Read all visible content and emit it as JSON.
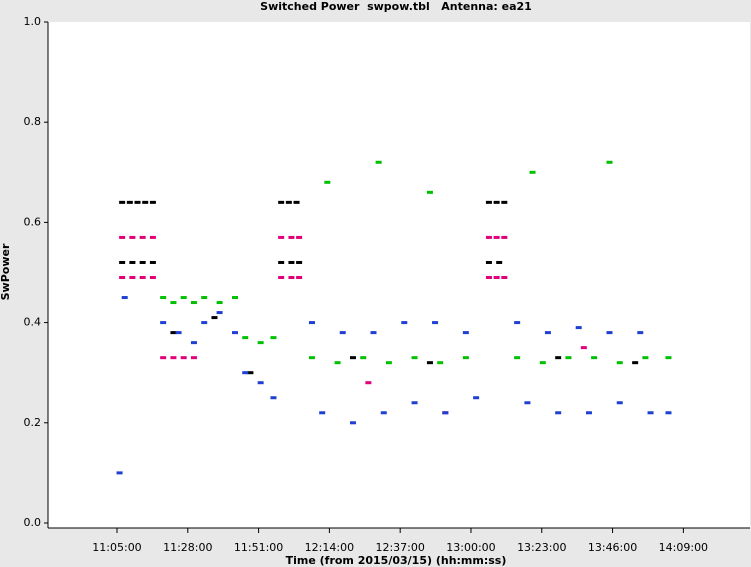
{
  "chart_data": {
    "type": "scatter",
    "title": "Switched Power  swpow.tbl   Antenna: ea21",
    "xlabel": "Time (from 2015/03/15) (hh:mm:ss)",
    "ylabel": "SwPower",
    "xlim": [
      38555,
      52239
    ],
    "ylim": [
      -0.01,
      1.0
    ],
    "xticks": [
      {
        "value": 39900,
        "label": "11:05:00"
      },
      {
        "value": 41280,
        "label": "11:28:00"
      },
      {
        "value": 42660,
        "label": "11:51:00"
      },
      {
        "value": 44040,
        "label": "12:14:00"
      },
      {
        "value": 45420,
        "label": "12:37:00"
      },
      {
        "value": 46800,
        "label": "13:00:00"
      },
      {
        "value": 48180,
        "label": "13:23:00"
      },
      {
        "value": 49560,
        "label": "13:46:00"
      },
      {
        "value": 50940,
        "label": "14:09:00"
      }
    ],
    "yticks": [
      {
        "value": 0,
        "label": "0.0"
      },
      0.2,
      0.4,
      0.6,
      0.8,
      {
        "value": 1,
        "label": "1.0"
      }
    ],
    "series": [
      {
        "color": "#000000",
        "x": [
          40000,
          40150,
          40300,
          40450,
          40600,
          40000,
          40200,
          40400,
          40600,
          43100,
          43250,
          43400,
          43100,
          43300,
          43450,
          47150,
          47300,
          47450,
          47150,
          47350,
          41000,
          41800,
          42500,
          44500,
          46000,
          48500,
          50000
        ],
        "values": [
          0.64,
          0.64,
          0.64,
          0.64,
          0.64,
          0.52,
          0.52,
          0.52,
          0.52,
          0.64,
          0.64,
          0.64,
          0.52,
          0.52,
          0.52,
          0.64,
          0.64,
          0.64,
          0.52,
          0.52,
          0.38,
          0.41,
          0.3,
          0.33,
          0.32,
          0.33,
          0.32
        ]
      },
      {
        "color": "#e0007a",
        "x": [
          40000,
          40200,
          40400,
          40600,
          40000,
          40200,
          40400,
          40600,
          43100,
          43300,
          43450,
          43100,
          43300,
          43450,
          47150,
          47300,
          47450,
          47150,
          47300,
          47450,
          40800,
          41000,
          41200,
          41400,
          44800,
          46300,
          49000
        ],
        "values": [
          0.57,
          0.57,
          0.57,
          0.57,
          0.49,
          0.49,
          0.49,
          0.49,
          0.57,
          0.57,
          0.57,
          0.49,
          0.49,
          0.49,
          0.57,
          0.57,
          0.57,
          0.49,
          0.49,
          0.49,
          0.33,
          0.33,
          0.33,
          0.33,
          0.28,
          0.22,
          0.35
        ]
      },
      {
        "color": "#00c000",
        "x": [
          40800,
          41000,
          41200,
          41400,
          41600,
          41900,
          42200,
          42400,
          42700,
          42950,
          43700,
          44200,
          44700,
          45200,
          45700,
          46200,
          46700,
          47700,
          48200,
          48700,
          49200,
          49700,
          50200,
          50650,
          44000,
          45000,
          46000,
          48000,
          49500
        ],
        "values": [
          0.45,
          0.44,
          0.45,
          0.44,
          0.45,
          0.44,
          0.45,
          0.37,
          0.36,
          0.37,
          0.33,
          0.32,
          0.33,
          0.32,
          0.33,
          0.32,
          0.33,
          0.33,
          0.32,
          0.33,
          0.33,
          0.32,
          0.33,
          0.33,
          0.68,
          0.72,
          0.66,
          0.7,
          0.72
        ]
      },
      {
        "color": "#1f3fd0",
        "x": [
          40800,
          41100,
          41400,
          41600,
          41900,
          42200,
          42400,
          42700,
          42950,
          43700,
          43900,
          44300,
          44500,
          44900,
          45100,
          45500,
          45700,
          46100,
          46300,
          46700,
          46900,
          47700,
          47900,
          48300,
          48500,
          48900,
          49100,
          49500,
          49700,
          50100,
          50300,
          50650,
          39950,
          40050
        ],
        "values": [
          0.4,
          0.38,
          0.36,
          0.4,
          0.42,
          0.38,
          0.3,
          0.28,
          0.25,
          0.4,
          0.22,
          0.38,
          0.2,
          0.38,
          0.22,
          0.4,
          0.24,
          0.4,
          0.22,
          0.38,
          0.25,
          0.4,
          0.24,
          0.38,
          0.22,
          0.39,
          0.22,
          0.38,
          0.24,
          0.38,
          0.22,
          0.22,
          0.1,
          0.45
        ]
      }
    ]
  }
}
